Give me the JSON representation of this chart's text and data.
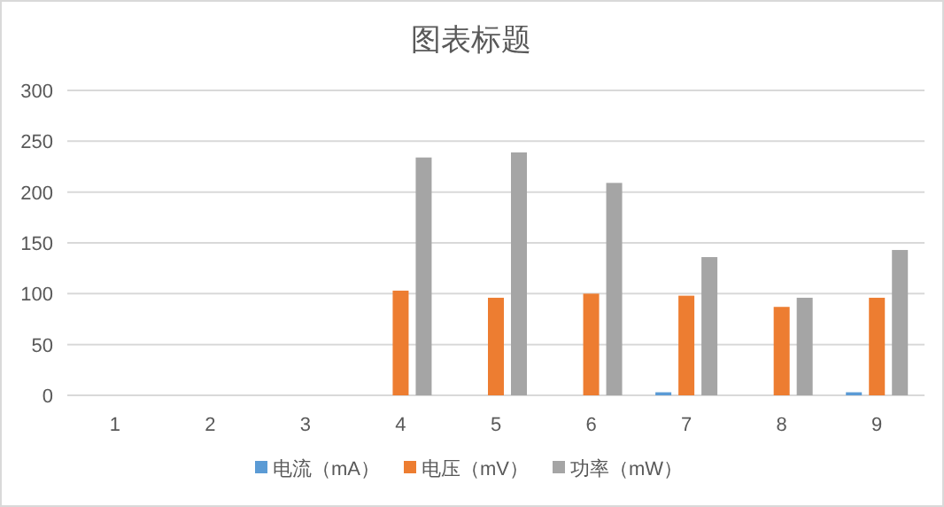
{
  "chart_data": {
    "type": "bar",
    "title": "图表标题",
    "categories": [
      "1",
      "2",
      "3",
      "4",
      "5",
      "6",
      "7",
      "8",
      "9"
    ],
    "series": [
      {
        "name": "电流（mA）",
        "color": "#5b9bd5",
        "values": [
          0,
          0,
          0,
          0,
          0,
          0,
          3,
          0,
          3
        ]
      },
      {
        "name": "电压（mV）",
        "color": "#ed7d31",
        "values": [
          0,
          0,
          0,
          103,
          96,
          100,
          98,
          87,
          96
        ]
      },
      {
        "name": "功率（mW）",
        "color": "#a5a5a5",
        "values": [
          0,
          0,
          0,
          234,
          239,
          209,
          136,
          96,
          143
        ]
      }
    ],
    "ylim": [
      0,
      300
    ],
    "yticks": [
      0,
      50,
      100,
      150,
      200,
      250,
      300
    ],
    "grid": "y",
    "legend": "bottom"
  }
}
